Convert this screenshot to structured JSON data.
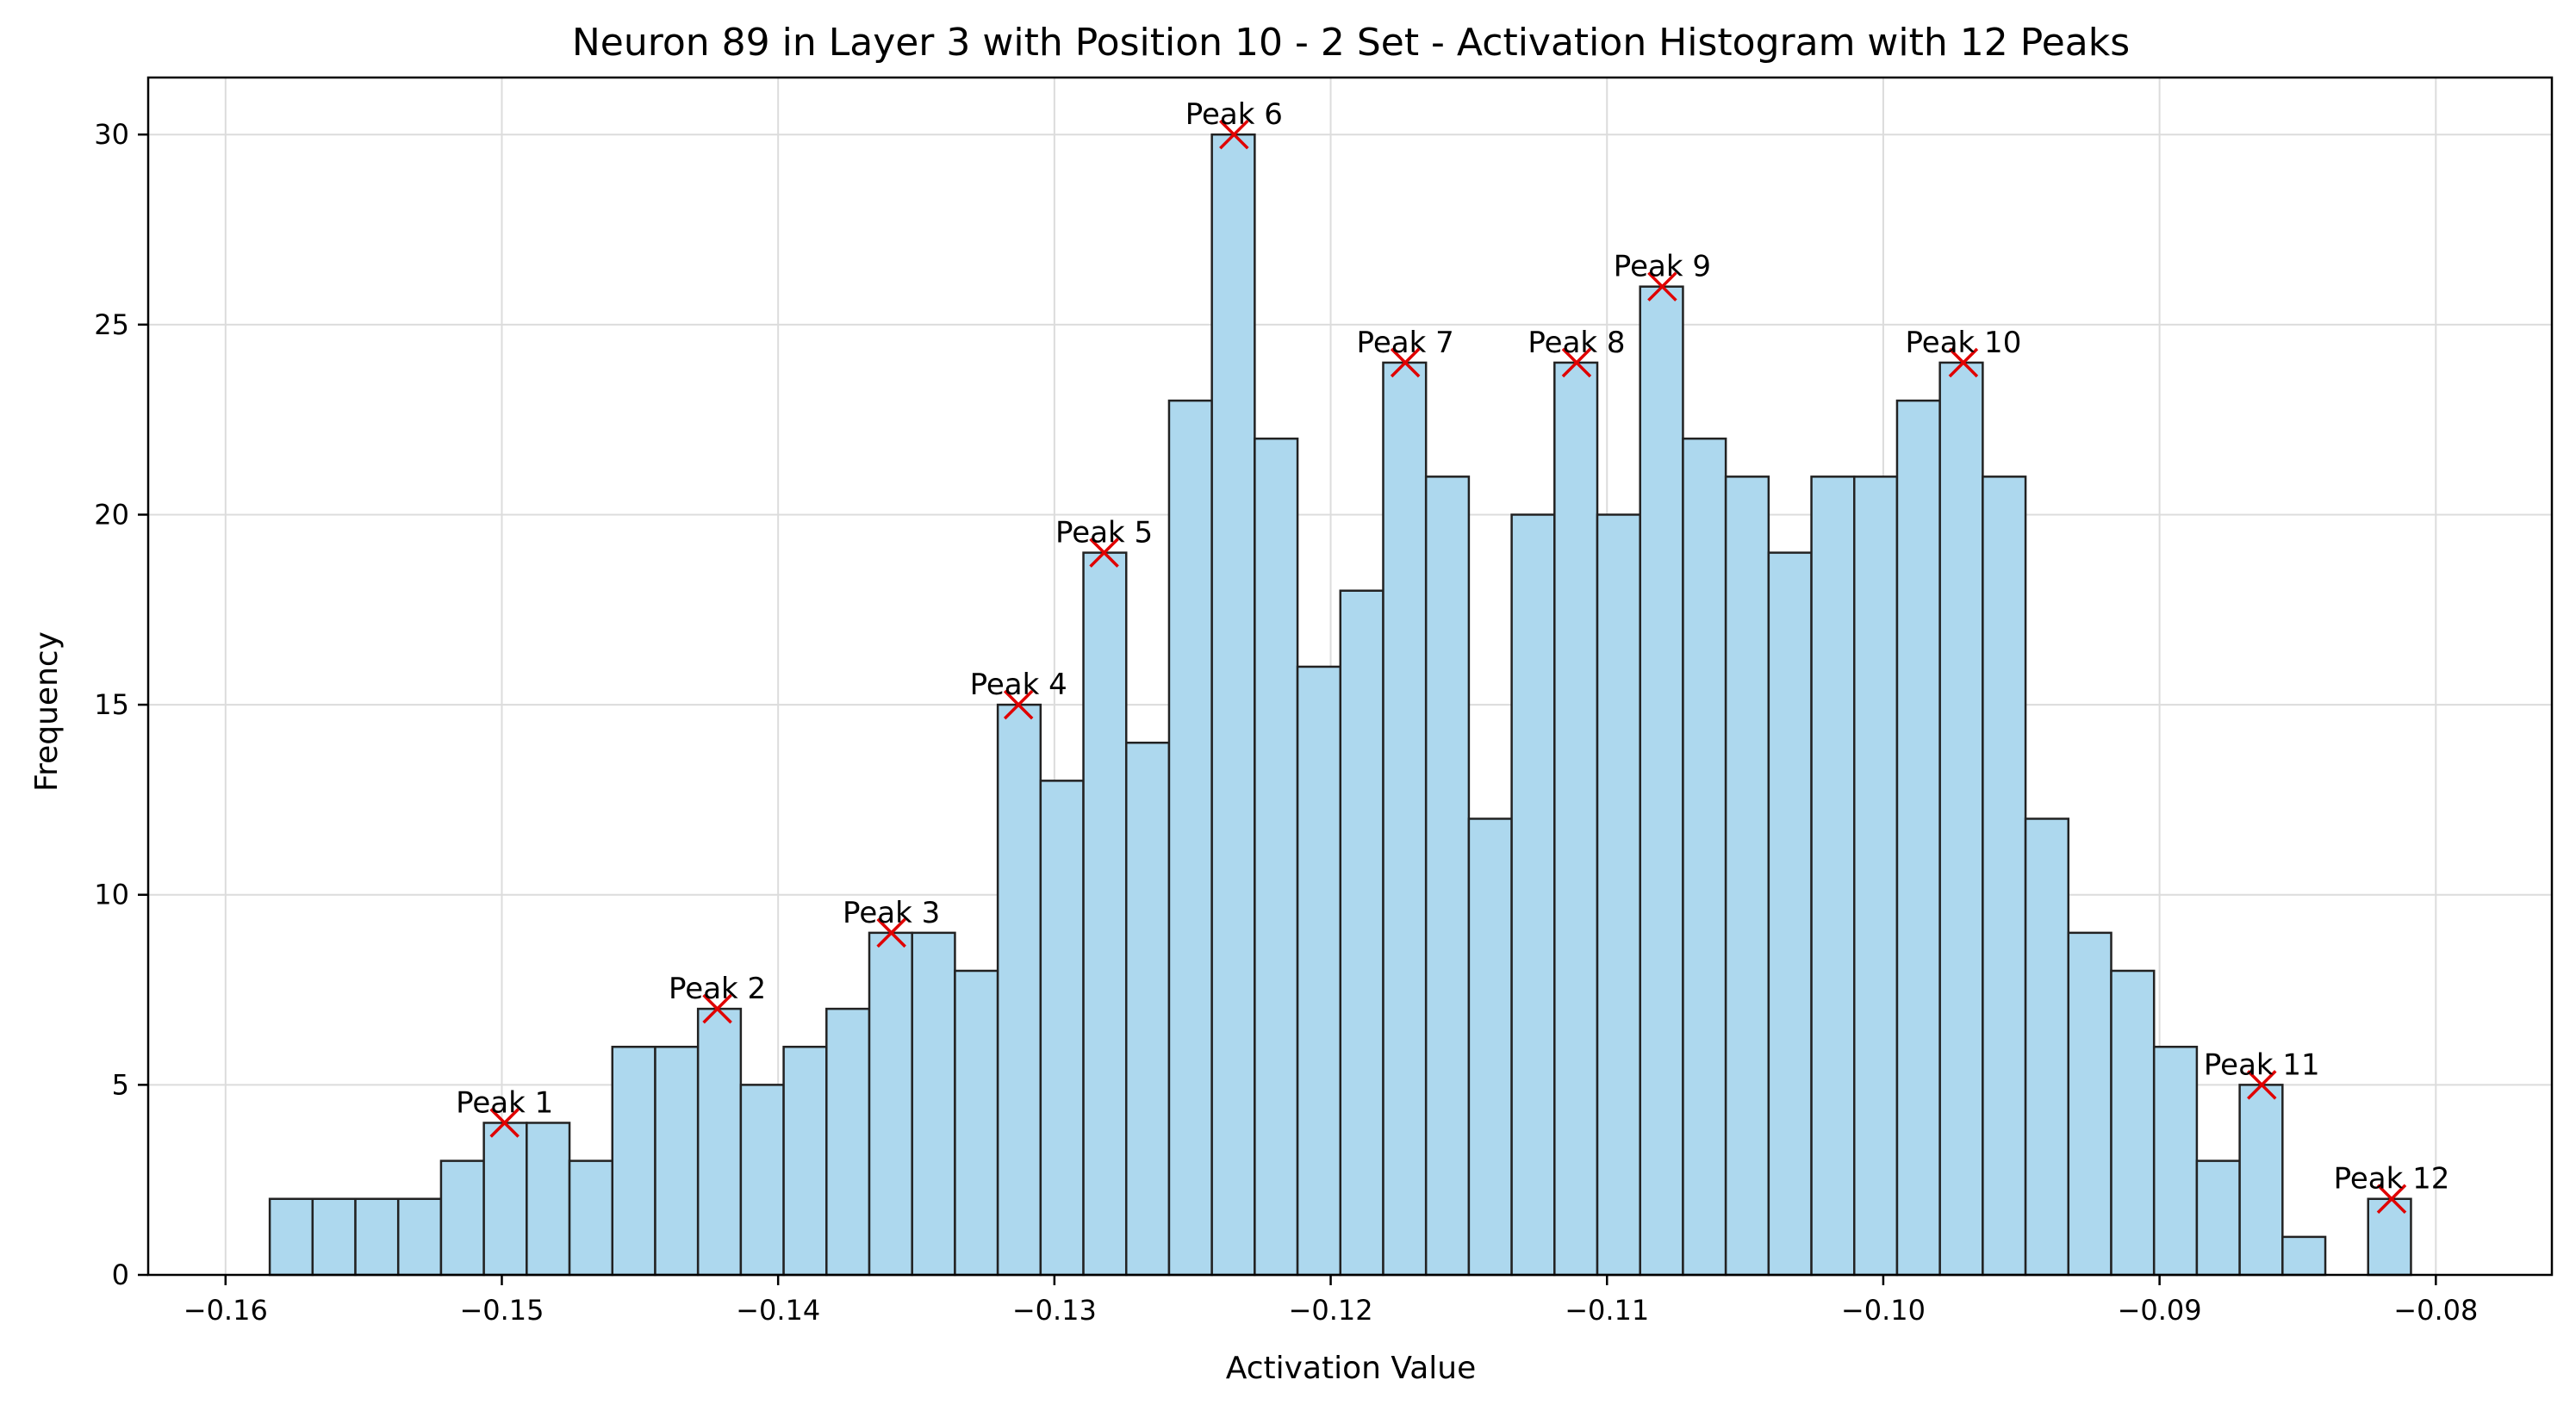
{
  "chart_data": {
    "type": "bar",
    "title": "Neuron 89 in Layer 3 with Position 10 - 2 Set - Activation Histogram with 12 Peaks",
    "xlabel": "Activation Value",
    "ylabel": "Frequency",
    "xlim": [
      -0.1628,
      -0.0758
    ],
    "ylim": [
      0,
      31.5
    ],
    "xticks": [
      -0.16,
      -0.15,
      -0.14,
      -0.13,
      -0.12,
      -0.11,
      -0.1,
      -0.09,
      -0.08
    ],
    "xtick_labels": [
      "−0.16",
      "−0.15",
      "−0.14",
      "−0.13",
      "−0.12",
      "−0.11",
      "−0.10",
      "−0.09",
      "−0.08"
    ],
    "yticks": [
      0,
      5,
      10,
      15,
      20,
      25,
      30
    ],
    "ytick_labels": [
      "0",
      "5",
      "10",
      "15",
      "20",
      "25",
      "30"
    ],
    "grid": true,
    "bar_fill": "#add8ee",
    "bar_edge": "#222222",
    "peak_marker_color": "#e00000",
    "bin_start": -0.1584,
    "bin_width": 0.00155,
    "counts": [
      2,
      2,
      2,
      2,
      3,
      4,
      4,
      3,
      6,
      6,
      7,
      5,
      6,
      7,
      9,
      9,
      8,
      15,
      13,
      19,
      14,
      23,
      30,
      22,
      16,
      18,
      24,
      21,
      12,
      20,
      24,
      20,
      26,
      22,
      21,
      19,
      21,
      21,
      23,
      24,
      21,
      12,
      9,
      8,
      6,
      3,
      5,
      1,
      0,
      2
    ],
    "peaks": [
      {
        "label": "Peak 1",
        "x": -0.1499,
        "y": 4
      },
      {
        "label": "Peak 2",
        "x": -0.1422,
        "y": 7
      },
      {
        "label": "Peak 3",
        "x": -0.1359,
        "y": 9
      },
      {
        "label": "Peak 4",
        "x": -0.1313,
        "y": 15
      },
      {
        "label": "Peak 5",
        "x": -0.1282,
        "y": 19
      },
      {
        "label": "Peak 6",
        "x": -0.1235,
        "y": 30
      },
      {
        "label": "Peak 7",
        "x": -0.1173,
        "y": 24
      },
      {
        "label": "Peak 8",
        "x": -0.1111,
        "y": 24
      },
      {
        "label": "Peak 9",
        "x": -0.108,
        "y": 26
      },
      {
        "label": "Peak 10",
        "x": -0.0971,
        "y": 24
      },
      {
        "label": "Peak 11",
        "x": -0.0863,
        "y": 5
      },
      {
        "label": "Peak 12",
        "x": -0.0816,
        "y": 2
      }
    ]
  }
}
